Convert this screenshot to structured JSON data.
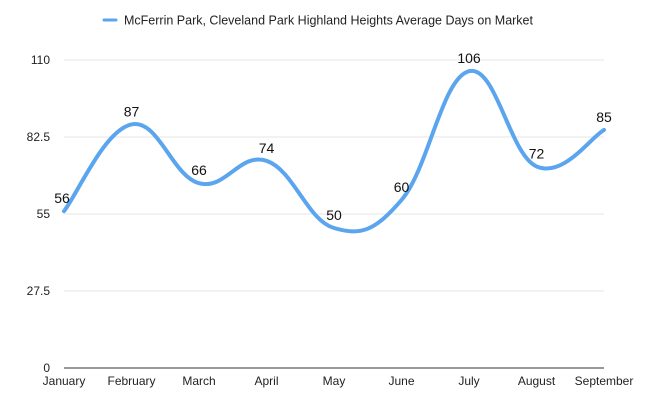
{
  "chart_data": {
    "type": "line",
    "smooth": true,
    "categories": [
      "January",
      "February",
      "March",
      "April",
      "May",
      "June",
      "July",
      "August",
      "September"
    ],
    "series": [
      {
        "name": "McFerrin Park, Cleveland Park Highland Heights Average Days on Market",
        "values": [
          56,
          87,
          66,
          74,
          50,
          60,
          106,
          72,
          85
        ],
        "color": "#5aa5ee"
      }
    ],
    "yticks": [
      "0",
      "27.5",
      "55",
      "82.5",
      "110"
    ],
    "ylim": [
      0,
      110
    ],
    "grid": true,
    "legend_position": "top",
    "data_labels": true
  }
}
